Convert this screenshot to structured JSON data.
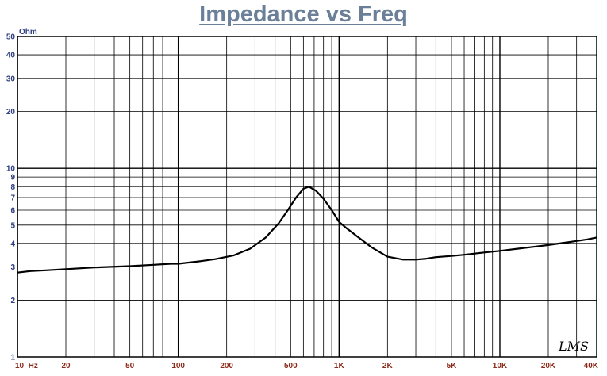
{
  "chart_data": {
    "type": "line",
    "title": "Impedance vs Freq",
    "ylabel_unit": "Ohm",
    "x_scale": "log",
    "y_scale": "log",
    "xlim": [
      10,
      40000
    ],
    "ylim": [
      1,
      50
    ],
    "grid": true,
    "x_tick_values": [
      10,
      20,
      50,
      100,
      200,
      500,
      1000,
      2000,
      5000,
      10000,
      20000,
      40000
    ],
    "x_tick_labels": [
      "10  Hz",
      "20",
      "50",
      "100",
      "200",
      "500",
      "1K",
      "2K",
      "5K",
      "10K",
      "20K",
      "40K"
    ],
    "y_tick_values": [
      1,
      2,
      3,
      4,
      5,
      6,
      7,
      8,
      9,
      10,
      20,
      30,
      40,
      50
    ],
    "y_tick_labels": [
      "1",
      "2",
      "3",
      "4",
      "5",
      "6",
      "7",
      "8",
      "9",
      "10",
      "20",
      "30",
      "40",
      "50"
    ],
    "series": [
      {
        "color": "#000000",
        "x": [
          10,
          12,
          15,
          20,
          30,
          50,
          70,
          90,
          100,
          130,
          170,
          220,
          280,
          350,
          420,
          480,
          540,
          600,
          650,
          720,
          800,
          900,
          1000,
          1100,
          1300,
          1600,
          2000,
          2500,
          3000,
          3500,
          4000,
          5000,
          6000,
          8000,
          10000,
          13000,
          16000,
          20000,
          25000,
          30000,
          35000,
          40000
        ],
        "y": [
          2.8,
          2.85,
          2.88,
          2.92,
          2.98,
          3.03,
          3.08,
          3.12,
          3.12,
          3.2,
          3.3,
          3.45,
          3.75,
          4.3,
          5.1,
          6.0,
          7.0,
          7.8,
          8.0,
          7.6,
          6.9,
          6.0,
          5.2,
          4.85,
          4.35,
          3.8,
          3.4,
          3.28,
          3.28,
          3.32,
          3.38,
          3.43,
          3.48,
          3.58,
          3.65,
          3.75,
          3.83,
          3.92,
          4.03,
          4.12,
          4.2,
          4.3
        ]
      }
    ],
    "logo": "LMS"
  }
}
